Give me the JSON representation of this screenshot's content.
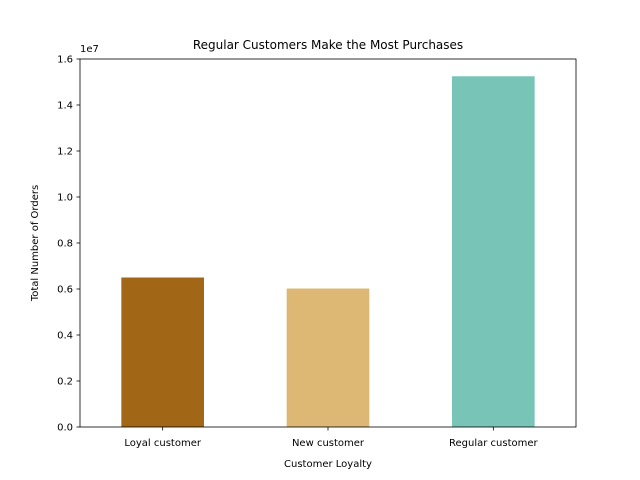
{
  "chart_data": {
    "type": "bar",
    "title": "Regular Customers Make the Most Purchases",
    "xlabel": "Customer Loyalty",
    "ylabel": "Total Number of Orders",
    "y_scale_label": "1e7",
    "categories": [
      "Loyal customer",
      "New customer",
      "Regular customer"
    ],
    "values": [
      6500000,
      6020000,
      15250000
    ],
    "colors": [
      "#a26617",
      "#dcb874",
      "#78c5b8"
    ],
    "ylim": [
      0,
      16000000
    ],
    "y_ticks": [
      0,
      2000000,
      4000000,
      6000000,
      8000000,
      10000000,
      12000000,
      14000000,
      16000000
    ],
    "y_tick_labels": [
      "0.0",
      "0.2",
      "0.4",
      "0.6",
      "0.8",
      "1.0",
      "1.2",
      "1.4",
      "1.6"
    ],
    "grid": false,
    "legend": "none"
  }
}
